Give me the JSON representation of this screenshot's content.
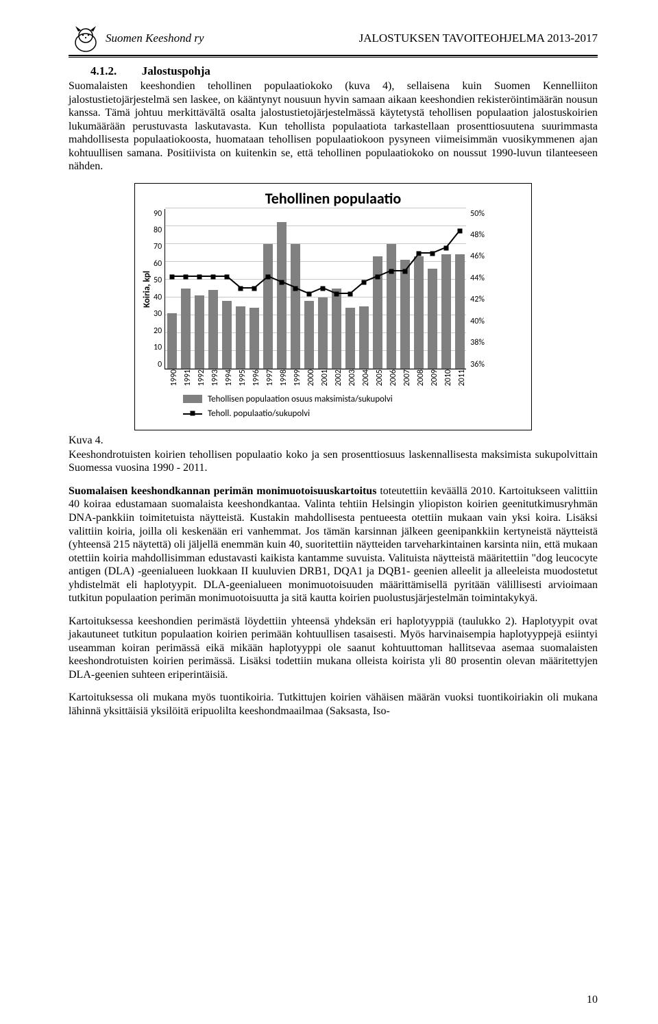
{
  "header": {
    "brand": "Suomen Keeshond ry",
    "doc_title": "JALOSTUKSEN TAVOITEOHJELMA 2013-2017"
  },
  "section": {
    "number": "4.1.2.",
    "title": "Jalostuspohja"
  },
  "para1": "Suomalaisten keeshondien tehollinen populaatiokoko (kuva 4), sellaisena kuin Suomen Kennelliiton jalostustietojärjestelmä sen laskee, on kääntynyt nousuun hyvin samaan aikaan keeshondien rekisteröintimäärän nousun kanssa. Tämä johtuu merkittävältä osalta jalostustietojärjestelmässä käytetystä tehollisen populaation jalostuskoirien lukumäärään perustuvasta laskutavasta. Kun tehollista populaatiota tarkastellaan prosenttiosuutena suurimmasta mahdollisesta populaatiokoosta, huomataan tehollisen populaatiokoon pysyneen viimeisimmän vuosikymmenen ajan kohtuullisen samana. Positiivista on kuitenkin se, että tehollinen populaatiokoko on noussut 1990-luvun tilanteeseen nähden.",
  "chart": {
    "title": "Tehollinen populaatio",
    "yaxis_label": "Koiria, kpl",
    "type": "bar+line",
    "y1_ticks": [
      "90",
      "80",
      "70",
      "60",
      "50",
      "40",
      "30",
      "20",
      "10",
      "0"
    ],
    "y2_ticks": [
      "50%",
      "48%",
      "46%",
      "44%",
      "42%",
      "40%",
      "38%",
      "36%"
    ],
    "x_labels": [
      "1990",
      "1991",
      "1992",
      "1993",
      "1994",
      "1995",
      "1996",
      "1997",
      "1998",
      "1999",
      "2000",
      "2001",
      "2002",
      "2003",
      "2004",
      "2005",
      "2006",
      "2007",
      "2008",
      "2009",
      "2010",
      "2011"
    ],
    "bar_values": [
      31,
      45,
      41,
      44,
      38,
      35,
      34,
      70,
      82,
      70,
      38,
      40,
      45,
      34,
      35,
      63,
      70,
      61,
      63,
      56,
      64,
      64
    ],
    "line_values_pct": [
      44,
      44,
      44,
      44,
      44,
      43,
      43,
      44,
      43.5,
      43,
      42.5,
      43,
      42.5,
      42.5,
      43.5,
      44,
      44.5,
      44.5,
      46.0,
      46.0,
      46.5,
      48.0
    ],
    "y1_min": 0,
    "y1_max": 90,
    "y2_min": 36,
    "y2_max": 50,
    "bar_color": "#808080",
    "grid_color": "#c8c8c8",
    "line_color": "#000000",
    "legend1": "Tehollisen populaation osuus maksimista/sukupolvi",
    "legend2": "Teholl. populaatio/sukupolvi"
  },
  "kuva": "Kuva 4.",
  "caption": "Keeshondrotuisten koirien tehollisen populaatio koko ja sen prosenttiosuus laskennallisesta maksimista sukupolvittain Suomessa vuosina 1990 - 2011.",
  "para2_lead": "Suomalaisen keeshondkannan perimän monimuotoisuuskartoitus",
  "para2_rest": " toteutettiin keväällä 2010. Kartoitukseen valittiin 40 koiraa edustamaan suomalaista keeshondkantaa. Valinta tehtiin Helsingin yliopiston koirien geenitutkimusryhmän DNA-pankkiin toimitetuista näytteistä. Kustakin mahdollisesta pentueesta otettiin mukaan vain yksi koira. Lisäksi valittiin koiria, joilla oli keskenään eri vanhemmat. Jos tämän karsinnan jälkeen geenipankkiin kertyneistä näytteistä (yhteensä 215 näytettä) oli jäljellä enemmän kuin 40, suoritettiin näytteiden tarveharkintainen karsinta niin, että mukaan otettiin koiria mahdollisimman edustavasti kaikista kantamme suvuista. Valituista näytteistä määritettiin \"dog leucocyte antigen (DLA) -geenialueen  luokkaan II kuuluvien DRB1, DQA1 ja DQB1- geenien alleelit ja alleeleista muodostetut yhdistelmät eli haplotyypit. DLA-geenialueen monimuotoisuuden määrittämisellä pyritään välillisesti arvioimaan tutkitun populaation perimän monimuotoisuutta ja sitä kautta koirien puolustusjärjestelmän toimintakykyä.",
  "para3": "Kartoituksessa keeshondien perimästä löydettiin yhteensä yhdeksän eri haplotyyppiä (taulukko 2). Haplotyypit ovat jakautuneet tutkitun populaation koirien perimään kohtuullisen tasaisesti. Myös harvinaisempia haplotyyppejä esiintyi useamman koiran perimässä eikä mikään haplotyyppi ole saanut kohtuuttoman hallitsevaa asemaa suomalaisten keeshondrotuisten koirien perimässä. Lisäksi todettiin mukana olleista koirista yli 80 prosentin olevan määritettyjen DLA-geenien suhteen eriperintäisiä.",
  "para4": "Kartoituksessa oli mukana myös tuontikoiria. Tutkittujen koirien vähäisen määrän vuoksi tuontikoiriakin oli mukana lähinnä yksittäisiä yksilöitä eripuolilta keeshondmaailmaa (Saksasta, Iso-",
  "page_number": "10"
}
